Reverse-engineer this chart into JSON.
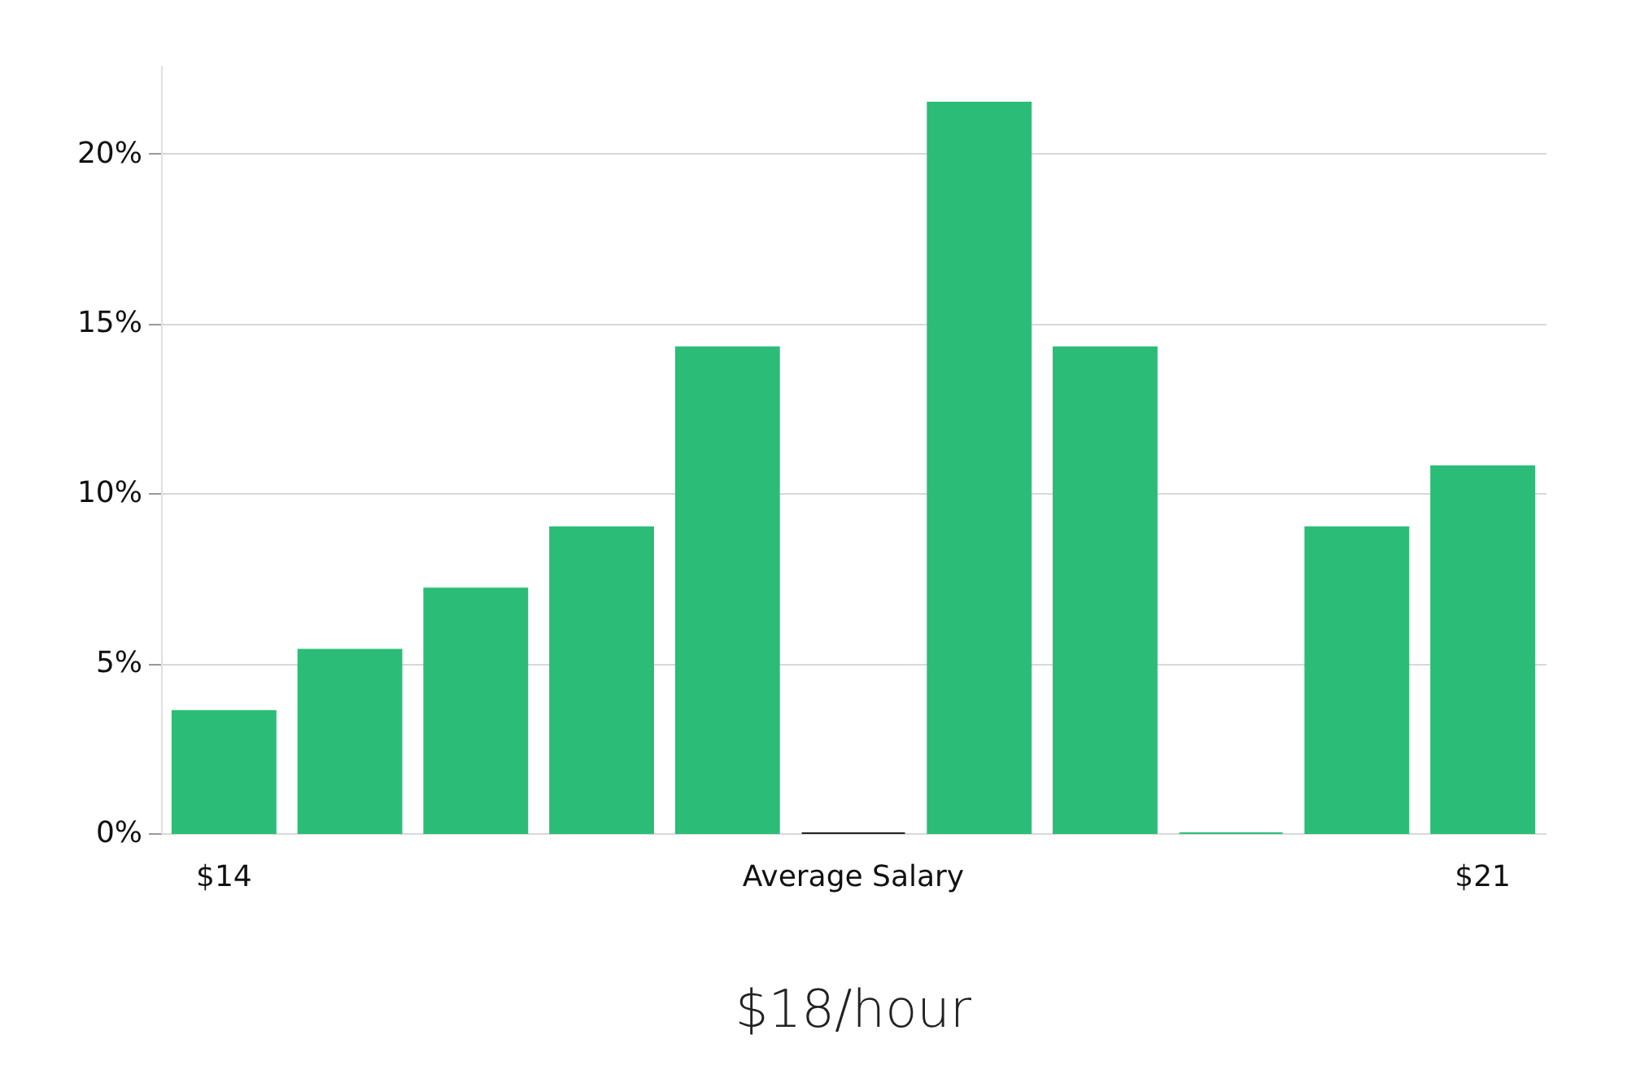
{
  "chart_data": {
    "type": "bar",
    "title": "$18/hour",
    "categories": [
      "$14",
      null,
      null,
      null,
      null,
      "Average Salary",
      null,
      null,
      null,
      null,
      "$21"
    ],
    "values": [
      3.6,
      5.4,
      7.2,
      9.0,
      14.3,
      0,
      21.5,
      14.3,
      0,
      9.0,
      10.8
    ],
    "colors": [
      "#2bbd77",
      "#2bbd77",
      "#2bbd77",
      "#2bbd77",
      "#2bbd77",
      "#222222",
      "#2bbd77",
      "#2bbd77",
      "#2bbd77",
      "#2bbd77",
      "#2bbd77"
    ],
    "ylim": [
      0,
      22.6
    ],
    "yticks": [
      {
        "value": 0,
        "label": "0%"
      },
      {
        "value": 5,
        "label": "5%"
      },
      {
        "value": 10,
        "label": "10%"
      },
      {
        "value": 15,
        "label": "15%"
      },
      {
        "value": 20,
        "label": "20%"
      }
    ],
    "grid": "y"
  }
}
